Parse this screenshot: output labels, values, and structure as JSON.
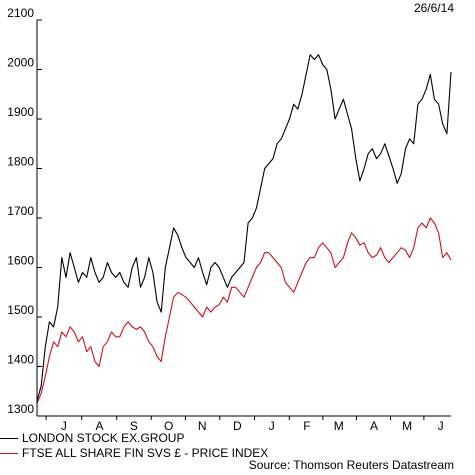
{
  "date_stamp": "26/6/14",
  "source": "Source: Thomson Reuters Datastream",
  "colors": {
    "series_1": "#000000",
    "series_2": "#d0101a",
    "axis": "#000000"
  },
  "chart_data": {
    "type": "line",
    "title": "",
    "xlabel": "",
    "ylabel": "",
    "ylim": [
      1300,
      2100
    ],
    "yticks": [
      1300,
      1400,
      1500,
      1600,
      1700,
      1800,
      1900,
      2000,
      2100
    ],
    "x_range": [
      0,
      100
    ],
    "x_tick_labels": [
      "J",
      "A",
      "S",
      "O",
      "N",
      "D",
      "J",
      "F",
      "M",
      "A",
      "M",
      "J"
    ],
    "x_tick_positions": [
      6.5,
      15.1,
      23.4,
      31.8,
      39.9,
      48.4,
      56.7,
      65.2,
      72.9,
      81.4,
      89.4,
      97.5
    ],
    "legend_placement": "bottom-left",
    "grid": false,
    "series": [
      {
        "name": "LONDON STOCK EX.GROUP",
        "x": [
          0,
          1,
          2,
          3,
          4,
          5,
          6,
          7,
          8,
          9,
          10,
          11,
          12,
          13,
          14,
          15,
          16,
          17,
          18,
          19,
          20,
          21,
          22,
          23,
          24,
          25,
          26,
          27,
          28,
          29,
          30,
          31,
          32,
          33,
          34,
          35,
          36,
          37,
          38,
          39,
          40,
          41,
          42,
          43,
          44,
          45,
          46,
          47,
          48,
          49,
          50,
          51,
          52,
          53,
          54,
          55,
          56,
          57,
          58,
          59,
          60,
          61,
          62,
          63,
          64,
          65,
          66,
          67,
          68,
          69,
          70,
          71,
          72,
          73,
          74,
          75,
          76,
          77,
          78,
          79,
          80,
          81,
          82,
          83,
          84,
          85,
          86,
          87,
          88,
          89,
          90,
          91,
          92,
          93,
          94,
          95,
          96,
          97,
          98,
          99,
          100
        ],
        "values": [
          1330,
          1360,
          1440,
          1490,
          1480,
          1520,
          1620,
          1580,
          1630,
          1600,
          1570,
          1590,
          1580,
          1620,
          1590,
          1570,
          1580,
          1610,
          1590,
          1580,
          1590,
          1570,
          1560,
          1600,
          1620,
          1560,
          1580,
          1620,
          1590,
          1530,
          1510,
          1600,
          1640,
          1680,
          1665,
          1640,
          1620,
          1610,
          1600,
          1620,
          1590,
          1565,
          1600,
          1610,
          1600,
          1580,
          1560,
          1580,
          1590,
          1600,
          1610,
          1690,
          1700,
          1720,
          1760,
          1800,
          1810,
          1820,
          1850,
          1860,
          1880,
          1900,
          1930,
          1920,
          1950,
          1990,
          2030,
          2020,
          2030,
          2010,
          2000,
          1960,
          1900,
          1920,
          1940,
          1910,
          1880,
          1820,
          1775,
          1800,
          1830,
          1840,
          1820,
          1830,
          1850,
          1825,
          1800,
          1770,
          1790,
          1840,
          1860,
          1850,
          1930,
          1940,
          1960,
          1990,
          1940,
          1930,
          1890,
          1870,
          1995
        ]
      },
      {
        "name": "FTSE ALL SHARE FIN SVS £ - PRICE INDEX",
        "x": [
          0,
          1,
          2,
          3,
          4,
          5,
          6,
          7,
          8,
          9,
          10,
          11,
          12,
          13,
          14,
          15,
          16,
          17,
          18,
          19,
          20,
          21,
          22,
          23,
          24,
          25,
          26,
          27,
          28,
          29,
          30,
          31,
          32,
          33,
          34,
          35,
          36,
          37,
          38,
          39,
          40,
          41,
          42,
          43,
          44,
          45,
          46,
          47,
          48,
          49,
          50,
          51,
          52,
          53,
          54,
          55,
          56,
          57,
          58,
          59,
          60,
          61,
          62,
          63,
          64,
          65,
          66,
          67,
          68,
          69,
          70,
          71,
          72,
          73,
          74,
          75,
          76,
          77,
          78,
          79,
          80,
          81,
          82,
          83,
          84,
          85,
          86,
          87,
          88,
          89,
          90,
          91,
          92,
          93,
          94,
          95,
          96,
          97,
          98,
          99,
          100
        ],
        "values": [
          1325,
          1345,
          1380,
          1420,
          1450,
          1440,
          1470,
          1460,
          1480,
          1470,
          1450,
          1460,
          1430,
          1440,
          1410,
          1400,
          1440,
          1450,
          1470,
          1460,
          1460,
          1480,
          1490,
          1480,
          1475,
          1480,
          1470,
          1450,
          1440,
          1420,
          1410,
          1460,
          1500,
          1540,
          1550,
          1545,
          1540,
          1530,
          1520,
          1510,
          1500,
          1520,
          1510,
          1520,
          1525,
          1540,
          1530,
          1560,
          1560,
          1550,
          1540,
          1560,
          1580,
          1600,
          1610,
          1630,
          1630,
          1620,
          1610,
          1600,
          1570,
          1560,
          1550,
          1570,
          1590,
          1610,
          1620,
          1620,
          1640,
          1650,
          1640,
          1630,
          1600,
          1610,
          1620,
          1650,
          1670,
          1660,
          1645,
          1650,
          1630,
          1620,
          1625,
          1640,
          1620,
          1610,
          1620,
          1630,
          1640,
          1635,
          1620,
          1640,
          1680,
          1690,
          1680,
          1700,
          1690,
          1670,
          1620,
          1630,
          1615
        ]
      }
    ]
  }
}
